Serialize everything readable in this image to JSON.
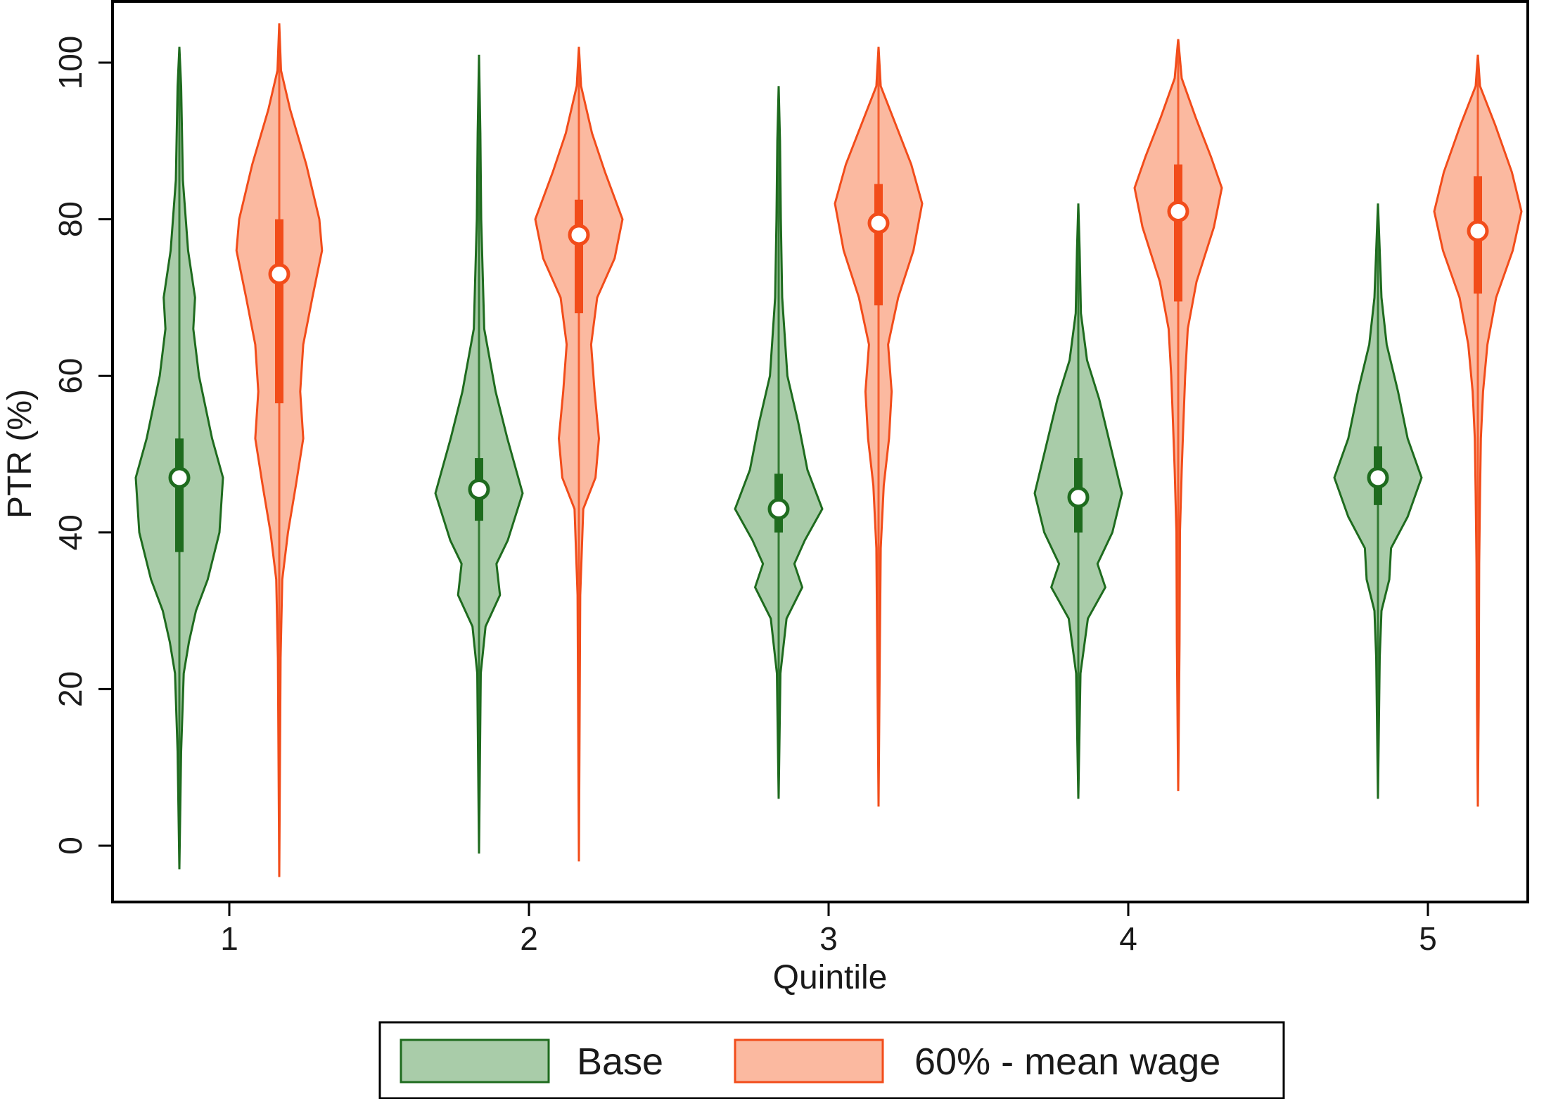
{
  "chart_data": {
    "type": "violin",
    "xlabel": "Quintile",
    "ylabel": "PTR (%)",
    "ylim": [
      -7,
      105
    ],
    "yticks": [
      0,
      20,
      40,
      60,
      80,
      100
    ],
    "categories": [
      "1",
      "2",
      "3",
      "4",
      "5"
    ],
    "legend_position": "bottom",
    "grid": false,
    "series": [
      {
        "name": "Base",
        "fill": "#a9cca9",
        "stroke": "#1e6b1e",
        "dots": [
          {
            "cat": "1",
            "median": 47,
            "q1": 37.5,
            "q3": 52,
            "min": -3,
            "max": 102
          },
          {
            "cat": "2",
            "median": 45.5,
            "q1": 41.5,
            "q3": 49.5,
            "min": -1,
            "max": 101
          },
          {
            "cat": "3",
            "median": 43,
            "q1": 40,
            "q3": 47.5,
            "min": 6,
            "max": 97
          },
          {
            "cat": "4",
            "median": 44.5,
            "q1": 40,
            "q3": 49.5,
            "min": 6,
            "max": 82
          },
          {
            "cat": "5",
            "median": 47,
            "q1": 43.5,
            "q3": 51,
            "min": 6,
            "max": 82
          }
        ]
      },
      {
        "name": "60% - mean wage",
        "fill": "#fbb9a0",
        "stroke": "#f24c1a",
        "dots": [
          {
            "cat": "1",
            "median": 73,
            "q1": 56.5,
            "q3": 80,
            "min": -4,
            "max": 105
          },
          {
            "cat": "2",
            "median": 78,
            "q1": 68,
            "q3": 82.5,
            "min": -2,
            "max": 102
          },
          {
            "cat": "3",
            "median": 79.5,
            "q1": 69,
            "q3": 84.5,
            "min": 5,
            "max": 102
          },
          {
            "cat": "4",
            "median": 81,
            "q1": 69.5,
            "q3": 87,
            "min": 7,
            "max": 103
          },
          {
            "cat": "5",
            "median": 78.5,
            "q1": 70.5,
            "q3": 85.5,
            "min": 5,
            "max": 101
          }
        ]
      }
    ]
  }
}
